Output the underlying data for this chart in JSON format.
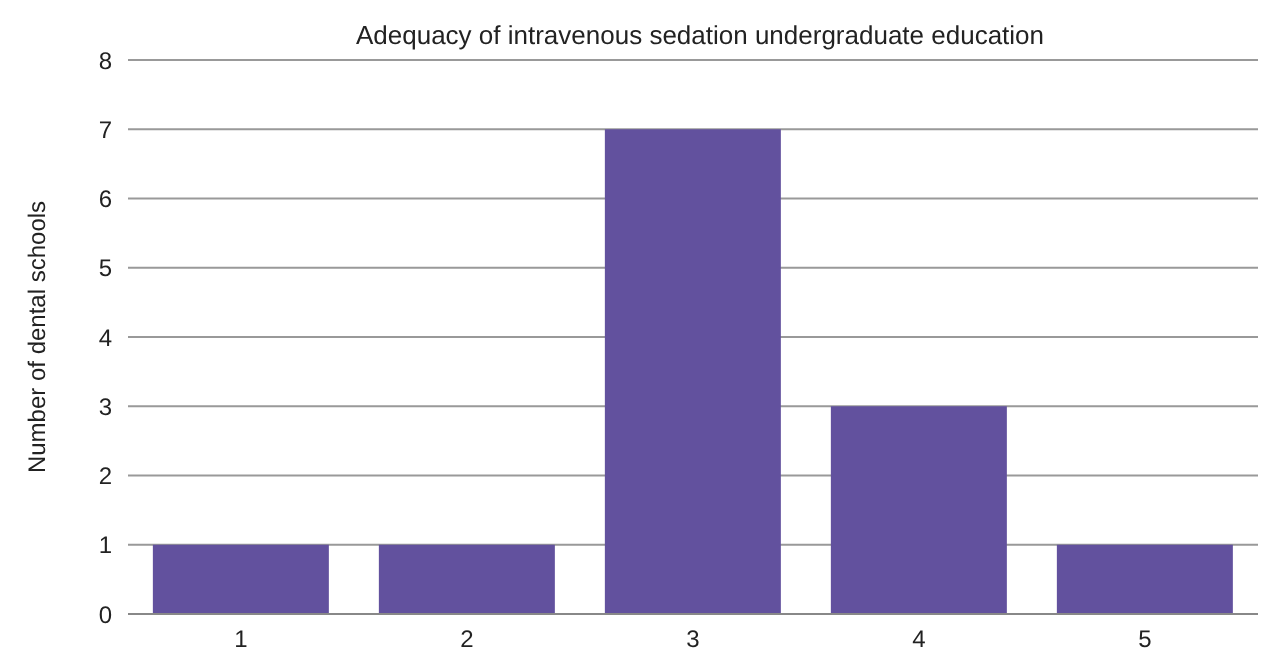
{
  "chart_data": {
    "type": "bar",
    "title": "Adequacy of intravenous sedation undergraduate education",
    "ylabel": "Number of dental schools",
    "categories": [
      "1",
      "2",
      "3",
      "4",
      "5"
    ],
    "values": [
      1,
      1,
      7,
      3,
      1
    ],
    "color": "#62519e",
    "ylim": [
      0,
      8
    ],
    "yticks": [
      0,
      1,
      2,
      3,
      4,
      5,
      6,
      7,
      8
    ],
    "grid": "y"
  }
}
